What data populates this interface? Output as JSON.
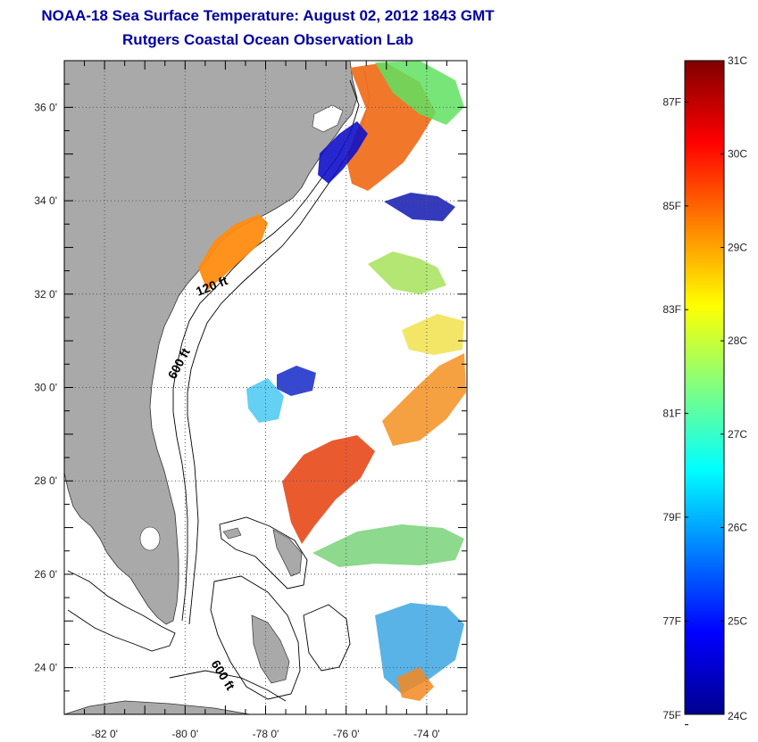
{
  "header": {
    "title": "NOAA-18 Sea Surface Temperature:  August 02, 2012 1843 GMT",
    "subtitle": "Rutgers Coastal Ocean Observation Lab"
  },
  "map": {
    "lon_range": [
      -83,
      -73
    ],
    "lat_range": [
      23,
      37
    ],
    "lon_ticks": [
      {
        "value": -82,
        "label": "-82 0'"
      },
      {
        "value": -80,
        "label": "-80 0'"
      },
      {
        "value": -78,
        "label": "-78 0'"
      },
      {
        "value": -76,
        "label": "-76 0'"
      },
      {
        "value": -74,
        "label": "-74 0'"
      }
    ],
    "lat_ticks": [
      {
        "value": 24,
        "label": "24 0'"
      },
      {
        "value": 26,
        "label": "26 0'"
      },
      {
        "value": 28,
        "label": "28 0'"
      },
      {
        "value": 30,
        "label": "30 0'"
      },
      {
        "value": 32,
        "label": "32 0'"
      },
      {
        "value": 34,
        "label": "34 0'"
      },
      {
        "value": 36,
        "label": "36 0'"
      }
    ],
    "contour_labels": [
      "120 ft",
      "600 ft",
      "600 ft"
    ],
    "colors": {
      "land": "#a9a9a9",
      "ocean": "#ffffff",
      "grid": "#555555"
    }
  },
  "colorbar": {
    "celsius_range": [
      24,
      31
    ],
    "celsius_labels": [
      "31C",
      "30C",
      "29C",
      "28C",
      "27C",
      "26C",
      "25C",
      "24C"
    ],
    "fahrenheit_labels": [
      "87F",
      "85F",
      "83F",
      "81F",
      "79F",
      "77F",
      "75F"
    ],
    "fahrenheit_values": [
      87,
      85,
      83,
      81,
      79,
      77,
      75
    ],
    "colormap": [
      "#00008f",
      "#0000ff",
      "#0080ff",
      "#00ffff",
      "#80ff80",
      "#ffff00",
      "#ff8000",
      "#ff0000",
      "#800000"
    ]
  }
}
